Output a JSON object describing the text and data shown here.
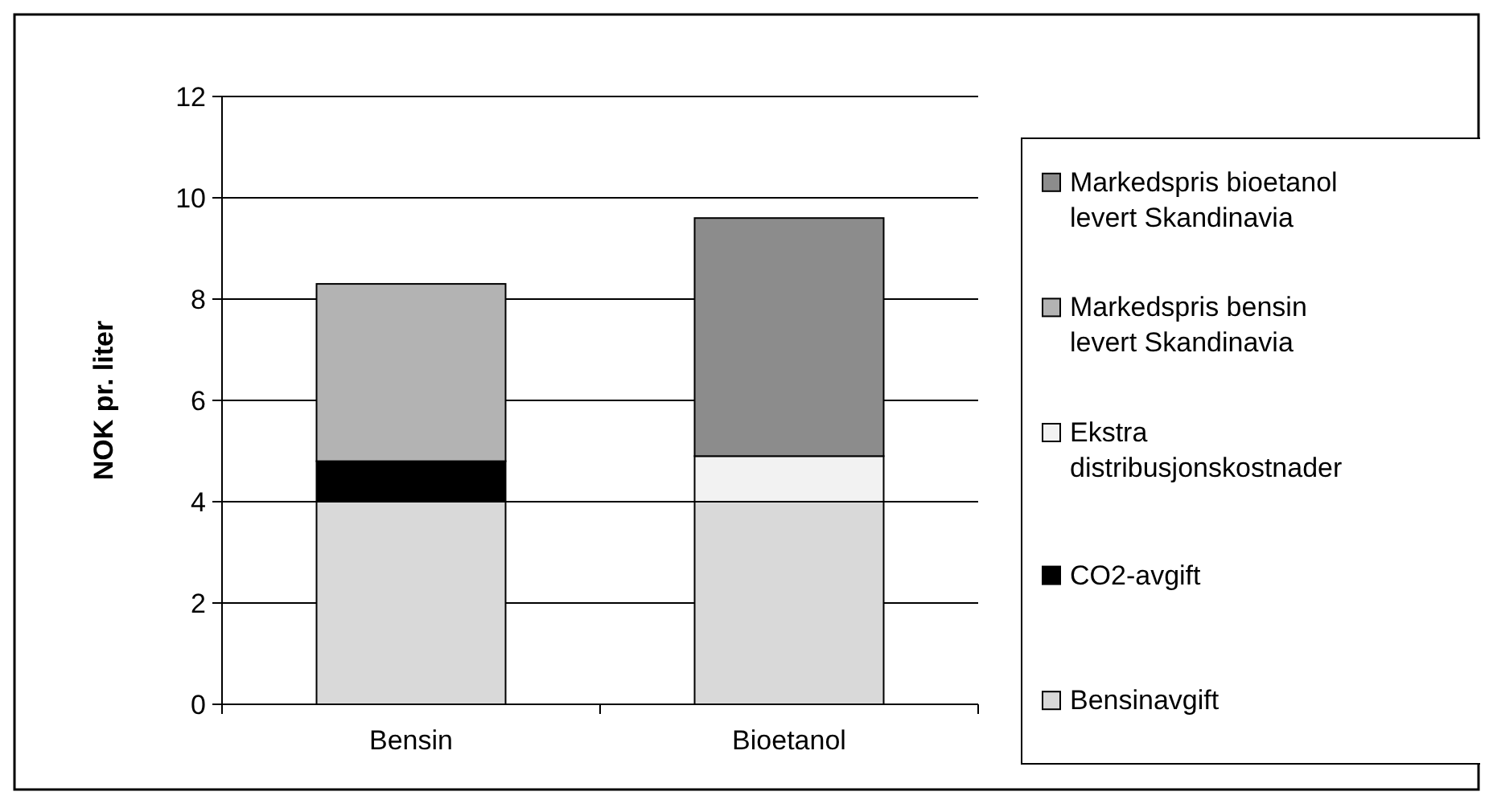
{
  "chart_data": {
    "type": "bar",
    "stacked": true,
    "ylabel": "NOK pr. liter",
    "categories": [
      "Bensin",
      "Bioetanol"
    ],
    "series": [
      {
        "name": "Bensinavgift",
        "color": "#d9d9d9",
        "values": [
          4.0,
          4.0
        ]
      },
      {
        "name": "CO2-avgift",
        "color": "#000000",
        "values": [
          0.8,
          0
        ]
      },
      {
        "name": "Ekstra distribusjonskostnader",
        "color": "#f2f2f2",
        "values": [
          0,
          0.9
        ]
      },
      {
        "name": "Markedspris bensin levert Skandinavia",
        "color": "#b3b3b3",
        "values": [
          3.5,
          0
        ]
      },
      {
        "name": "Markedspris bioetanol levert Skandinavia",
        "color": "#8c8c8c",
        "values": [
          0,
          4.7
        ]
      }
    ],
    "ylim": [
      0,
      12
    ],
    "yticks": [
      0,
      2,
      4,
      6,
      8,
      10,
      12
    ],
    "grid": "y",
    "legend": "right"
  }
}
